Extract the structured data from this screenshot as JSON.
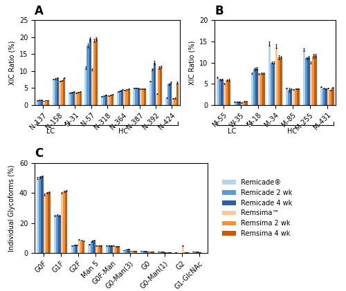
{
  "chart_data": [
    {
      "type": "bar",
      "title": "A",
      "ylabel": "XIC Ratio (%)",
      "ylim": [
        0,
        25
      ],
      "yticks": [
        0,
        5,
        10,
        15,
        20,
        25
      ],
      "categories": [
        "N-137",
        "N-158",
        "N-31",
        "N-57",
        "N-318",
        "N-364",
        "N-387",
        "N-392",
        "N-424"
      ],
      "annotations": [
        {
          "text": "LC",
          "categories": [
            "N-137",
            "N-158"
          ]
        },
        {
          "text": "HC",
          "categories": [
            "N-31",
            "N-57",
            "N-318",
            "N-364",
            "N-387",
            "N-392",
            "N-424"
          ]
        }
      ],
      "series": [
        {
          "name": "Remicade®",
          "color": "#b8d4ea",
          "values": [
            1.2,
            7.5,
            3.5,
            11.0,
            2.5,
            4.0,
            5.0,
            7.0,
            2.0
          ],
          "errors": [
            0.05,
            0.1,
            0.1,
            0.4,
            0.05,
            0.1,
            0.1,
            0.1,
            0.1
          ]
        },
        {
          "name": "Remicade 2 wk",
          "color": "#5b9bd5",
          "values": [
            1.4,
            7.7,
            3.7,
            17.5,
            2.6,
            4.2,
            5.0,
            10.5,
            6.0
          ],
          "errors": [
            0.05,
            0.2,
            0.1,
            0.6,
            0.1,
            0.1,
            0.1,
            0.3,
            0.2
          ]
        },
        {
          "name": "Remicade 4 wk",
          "color": "#2e5f9e",
          "values": [
            1.4,
            7.9,
            3.9,
            19.5,
            2.9,
            4.5,
            4.9,
            12.5,
            6.5
          ],
          "errors": [
            0.05,
            0.1,
            0.1,
            0.5,
            0.1,
            0.1,
            0.1,
            0.5,
            0.3
          ]
        },
        {
          "name": "Remsima™",
          "color": "#ffc89a",
          "values": [
            1.1,
            7.0,
            3.5,
            10.5,
            2.7,
            4.4,
            4.7,
            3.2,
            1.8
          ],
          "errors": [
            0.05,
            0.1,
            0.1,
            0.3,
            0.05,
            0.1,
            0.1,
            0.1,
            0.1
          ]
        },
        {
          "name": "Remsima 2 wk",
          "color": "#f4923a",
          "values": [
            1.3,
            7.2,
            3.7,
            19.0,
            2.8,
            4.5,
            4.8,
            11.0,
            2.0
          ],
          "errors": [
            0.05,
            0.1,
            0.1,
            0.5,
            0.1,
            0.1,
            0.1,
            0.4,
            0.2
          ]
        },
        {
          "name": "Remsima 4 wk",
          "color": "#c55a11",
          "values": [
            1.3,
            7.9,
            3.9,
            19.5,
            3.0,
            4.7,
            4.8,
            11.2,
            6.5
          ],
          "errors": [
            0.05,
            0.1,
            0.1,
            0.5,
            0.1,
            0.1,
            0.1,
            0.3,
            0.3
          ]
        }
      ]
    },
    {
      "type": "bar",
      "title": "B",
      "ylabel": "XIC Ratio (%)",
      "ylim": [
        0,
        20
      ],
      "yticks": [
        0,
        5,
        10,
        15,
        20
      ],
      "categories": [
        "M-55",
        "W-35",
        "M-18",
        "M-34",
        "M-85",
        "M-255",
        "M-431"
      ],
      "annotations": [
        {
          "text": "LC",
          "categories": [
            "M-55",
            "W-35"
          ]
        },
        {
          "text": "HC",
          "categories": [
            "M-18",
            "M-34",
            "M-85",
            "M-255",
            "M-431"
          ]
        }
      ],
      "series": [
        {
          "name": "Remicade®",
          "color": "#b8d4ea",
          "values": [
            6.5,
            0.7,
            7.5,
            14.5,
            4.0,
            13.0,
            4.3
          ],
          "errors": [
            0.2,
            0.05,
            0.2,
            0.5,
            0.1,
            0.3,
            0.1
          ]
        },
        {
          "name": "Remicade 2 wk",
          "color": "#5b9bd5",
          "values": [
            6.0,
            0.7,
            8.5,
            10.0,
            3.5,
            11.0,
            3.9
          ],
          "errors": [
            0.2,
            0.05,
            0.3,
            0.3,
            0.5,
            0.3,
            0.1
          ]
        },
        {
          "name": "Remicade 4 wk",
          "color": "#2e5f9e",
          "values": [
            6.0,
            0.7,
            8.6,
            10.0,
            3.7,
            11.2,
            3.8
          ],
          "errors": [
            0.2,
            0.05,
            0.3,
            0.3,
            0.2,
            0.3,
            0.1
          ]
        },
        {
          "name": "Remsima™",
          "color": "#ffc89a",
          "values": [
            5.0,
            0.5,
            7.3,
            13.8,
            3.6,
            10.0,
            4.0
          ],
          "errors": [
            0.1,
            0.05,
            0.2,
            0.5,
            0.1,
            0.3,
            0.1
          ]
        },
        {
          "name": "Remsima 2 wk",
          "color": "#f4923a",
          "values": [
            5.8,
            0.8,
            7.5,
            11.2,
            3.8,
            11.5,
            3.5
          ],
          "errors": [
            0.2,
            0.05,
            0.2,
            0.5,
            0.1,
            0.5,
            0.1
          ]
        },
        {
          "name": "Remsima 4 wk",
          "color": "#c55a11",
          "values": [
            5.9,
            0.8,
            7.5,
            11.3,
            3.8,
            11.7,
            4.1
          ],
          "errors": [
            0.2,
            0.05,
            0.2,
            0.3,
            0.1,
            0.4,
            0.1
          ]
        }
      ]
    },
    {
      "type": "bar",
      "title": "C",
      "ylabel": "Individual Glycoforms (%)",
      "ylim": [
        0,
        60
      ],
      "yticks": [
        0,
        20,
        40,
        60
      ],
      "categories": [
        "G0F",
        "G1F",
        "G2F",
        "Man 5",
        "G0F-Man",
        "G0-Man(3)",
        "G0",
        "G0-Man(1)",
        "G2",
        "G1-GlcNAc"
      ],
      "legend": "center left",
      "series": [
        {
          "name": "Remicade®",
          "color": "#b8d4ea",
          "values": [
            50.0,
            25.0,
            5.0,
            6.0,
            5.0,
            2.0,
            1.5,
            1.0,
            0.5,
            1.0
          ],
          "errors": [
            0.5,
            0.5,
            0.2,
            0.3,
            0.2,
            0.1,
            0.1,
            0.05,
            0.05,
            0.05
          ]
        },
        {
          "name": "Remicade 2 wk",
          "color": "#5b9bd5",
          "values": [
            50.5,
            25.5,
            5.5,
            8.0,
            5.0,
            2.5,
            1.5,
            1.0,
            0.3,
            1.0
          ],
          "errors": [
            0.5,
            0.5,
            0.2,
            0.3,
            0.2,
            0.1,
            0.1,
            0.05,
            0.05,
            0.05
          ]
        },
        {
          "name": "Remicade 4 wk",
          "color": "#2e5f9e",
          "values": [
            51.0,
            25.0,
            5.5,
            8.5,
            5.0,
            3.0,
            1.5,
            1.0,
            0.3,
            1.0
          ],
          "errors": [
            0.5,
            0.5,
            0.2,
            0.3,
            0.2,
            0.1,
            0.1,
            0.05,
            0.05,
            0.05
          ]
        },
        {
          "name": "Remsima™",
          "color": "#ffc89a",
          "values": [
            39.0,
            40.0,
            9.0,
            5.0,
            5.0,
            1.5,
            1.0,
            0.5,
            5.0,
            0.5
          ],
          "errors": [
            0.5,
            0.5,
            0.2,
            0.3,
            0.2,
            0.1,
            0.1,
            0.05,
            0.05,
            0.05
          ]
        },
        {
          "name": "Remsima 2 wk",
          "color": "#f4923a",
          "values": [
            40.0,
            41.0,
            8.5,
            5.0,
            4.5,
            1.5,
            1.0,
            0.5,
            0.5,
            0.3
          ],
          "errors": [
            0.5,
            0.5,
            0.2,
            0.3,
            0.2,
            0.1,
            0.1,
            0.05,
            0.05,
            0.05
          ]
        },
        {
          "name": "Remsima 4 wk",
          "color": "#c55a11",
          "values": [
            40.5,
            41.5,
            8.0,
            5.0,
            4.5,
            1.5,
            1.0,
            0.5,
            0.5,
            0.3
          ],
          "errors": [
            0.5,
            0.5,
            0.2,
            0.3,
            0.2,
            0.1,
            0.1,
            0.05,
            0.05,
            0.05
          ]
        }
      ]
    }
  ]
}
